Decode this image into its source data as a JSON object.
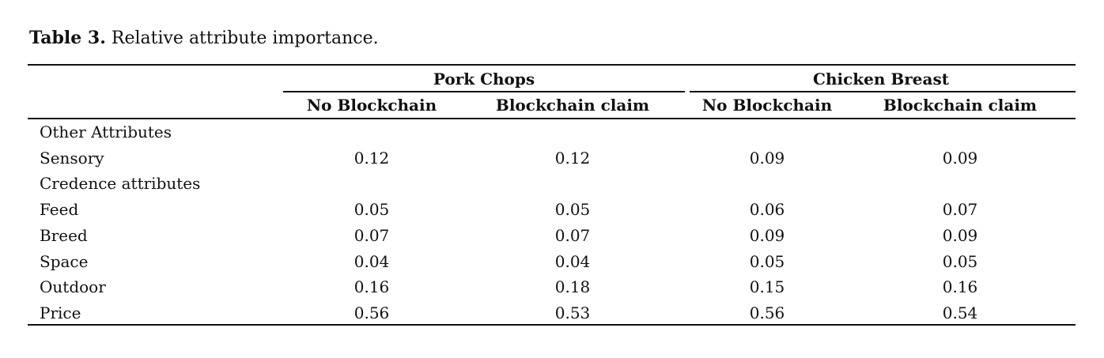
{
  "title": {
    "label": "Table 3.",
    "text": "Relative attribute importance."
  },
  "table": {
    "groups": [
      "Pork Chops",
      "Chicken Breast"
    ],
    "columns": [
      "No Blockchain",
      "Blockchain claim",
      "No Blockchain",
      "Blockchain claim"
    ],
    "rows": [
      [
        "Other Attributes"
      ],
      [
        "Sensory",
        "0.12",
        "0.12",
        "0.09",
        "0.09"
      ],
      [
        "Credence attributes"
      ],
      [
        "Feed",
        "0.05",
        "0.05",
        "0.06",
        "0.07"
      ],
      [
        "Breed",
        "0.07",
        "0.07",
        "0.09",
        "0.09"
      ],
      [
        "Space",
        "0.04",
        "0.04",
        "0.05",
        "0.05"
      ],
      [
        "Outdoor",
        "0.16",
        "0.18",
        "0.15",
        "0.16"
      ],
      [
        "Price",
        "0.56",
        "0.53",
        "0.56",
        "0.54"
      ]
    ]
  }
}
